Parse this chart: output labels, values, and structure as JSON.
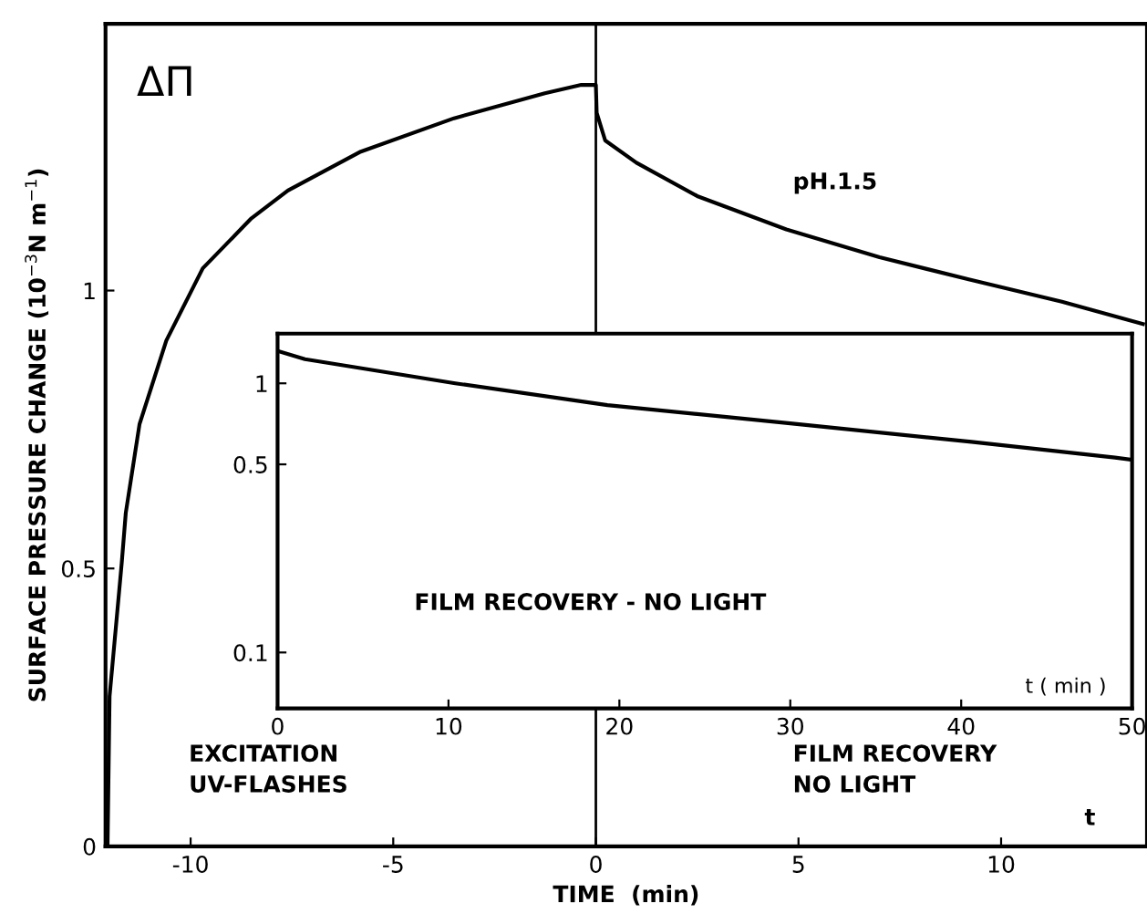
{
  "chart_data": [
    {
      "type": "line",
      "xlabel": "TIME  (min)",
      "ylabel": "SURFACE PRESSURE CHANGE (10$^{−3}$N m$^{−1}$)",
      "x": [
        -12.05,
        -12.0,
        -11.7,
        -11.6,
        -11.26,
        -10.6,
        -9.7,
        -8.5,
        -7.6,
        -5.8,
        -3.5,
        -1.26,
        -0.36,
        0,
        0.02,
        0.23,
        1.0,
        2.5,
        4.7,
        7.0,
        9.2,
        11.5,
        13.5
      ],
      "series": [
        {
          "color": "#000000",
          "values": [
            0,
            0.27,
            0.51,
            0.6,
            0.76,
            0.91,
            1.04,
            1.13,
            1.18,
            1.25,
            1.31,
            1.355,
            1.37,
            1.37,
            1.32,
            1.27,
            1.23,
            1.17,
            1.11,
            1.06,
            1.02,
            0.98,
            0.94
          ]
        }
      ],
      "xlim": [
        -12.1,
        13.6
      ],
      "ylim": [
        0,
        1.48
      ],
      "xticks": [
        -10,
        -5,
        0,
        5,
        10
      ],
      "yticks": [
        0,
        0.5,
        1
      ],
      "ref_lines": [
        {
          "axis": "x",
          "value": 0,
          "color": "#000000"
        }
      ],
      "annotations": [
        "ΔΠ",
        "pH.1.5",
        "EXCITATION\nUV-FLASHES",
        "FILM RECOVERY\nNO LIGHT",
        "t"
      ],
      "grid": false,
      "legend": false
    },
    {
      "type": "line",
      "xlabel": "t ( min )",
      "log": "y",
      "x": [
        0,
        1.6,
        10.4,
        19.3,
        30,
        40.6,
        49,
        50
      ],
      "series": [
        {
          "color": "#000000",
          "values": [
            1.32,
            1.23,
            1.0,
            0.83,
            0.71,
            0.606,
            0.53,
            0.52
          ]
        }
      ],
      "xlim": [
        0,
        50
      ],
      "ylim": [
        0.062,
        1.53
      ],
      "xticks": [
        0,
        10,
        20,
        30,
        40,
        50
      ],
      "yticks": [
        1,
        {
          "value": 0.5,
          "label": "0.5"
        },
        {
          "value": 0.1,
          "label": "0.1"
        }
      ],
      "annotations": [
        "FILM RECOVERY - NO LIGHT"
      ],
      "grid": false,
      "legend": false
    }
  ]
}
